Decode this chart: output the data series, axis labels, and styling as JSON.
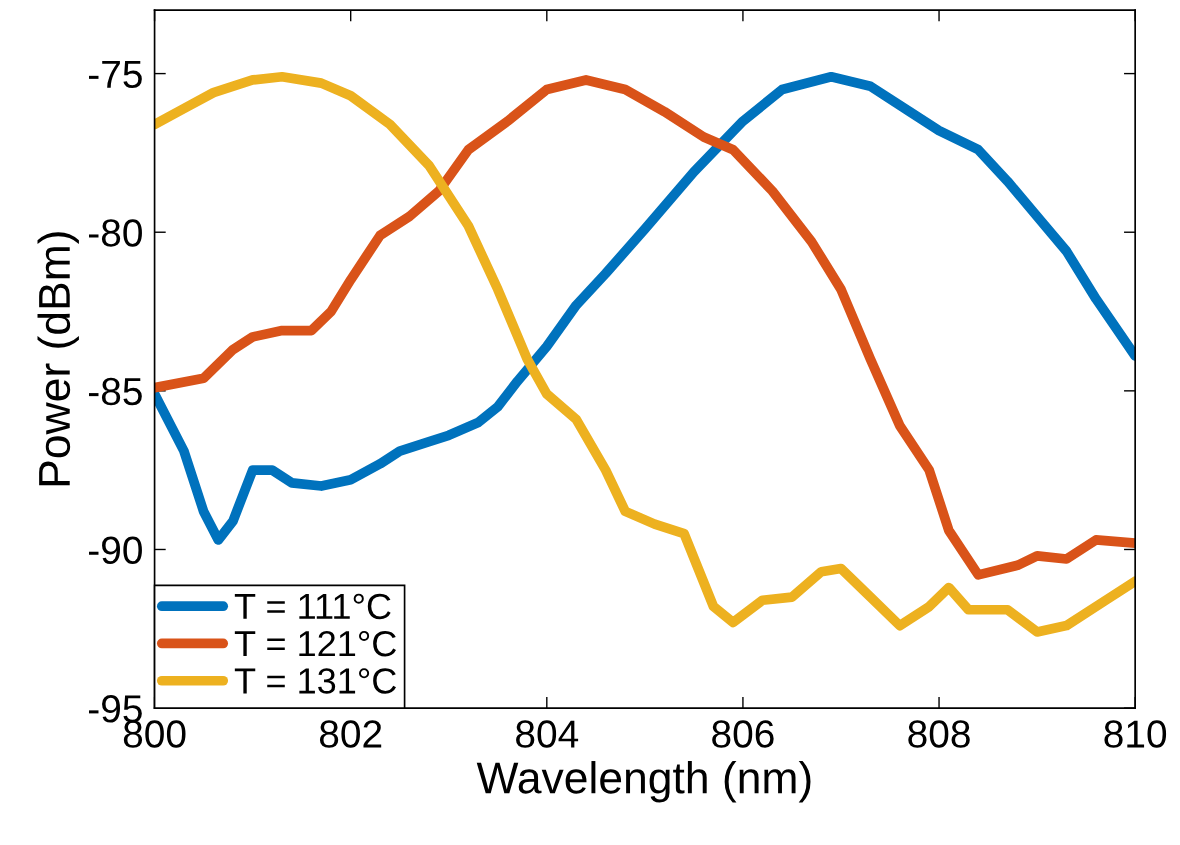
{
  "chart_data": {
    "type": "line",
    "xlabel": "Wavelength (nm)",
    "ylabel": "Power (dBm)",
    "xlim": [
      800,
      810
    ],
    "ylim": [
      -95,
      -73
    ],
    "xticks": [
      800,
      802,
      804,
      806,
      808,
      810
    ],
    "yticks": [
      -95,
      -90,
      -85,
      -80,
      -75
    ],
    "grid": false,
    "legend": "bottom left",
    "line_style": "solid",
    "marker": "none",
    "series": [
      {
        "name": "T = 111°C",
        "color": "#0072bd",
        "x": [
          800,
          800.3,
          800.5,
          800.65,
          800.8,
          801.0,
          801.2,
          801.4,
          801.7,
          802.0,
          802.3,
          802.5,
          802.8,
          803.0,
          803.3,
          803.5,
          803.7,
          804.0,
          804.3,
          804.6,
          805.0,
          805.5,
          806.0,
          806.4,
          806.9,
          807.3,
          807.7,
          808.0,
          808.4,
          808.7,
          809.0,
          809.3,
          809.6,
          810
        ],
        "values": [
          -85.1,
          -86.9,
          -88.8,
          -89.7,
          -89.1,
          -87.5,
          -87.5,
          -87.9,
          -88.0,
          -87.8,
          -87.3,
          -86.9,
          -86.6,
          -86.4,
          -86.0,
          -85.5,
          -84.7,
          -83.6,
          -82.3,
          -81.3,
          -79.9,
          -78.1,
          -76.5,
          -75.5,
          -75.1,
          -75.4,
          -76.2,
          -76.8,
          -77.4,
          -78.4,
          -79.5,
          -80.6,
          -82.1,
          -83.9
        ]
      },
      {
        "name": "T = 121°C",
        "color": "#d95319",
        "x": [
          800,
          800.5,
          800.8,
          801.0,
          801.3,
          801.6,
          801.8,
          802.0,
          802.3,
          802.6,
          802.9,
          803.2,
          803.6,
          804.0,
          804.4,
          804.8,
          805.2,
          805.6,
          805.9,
          806.3,
          806.7,
          807.0,
          807.3,
          807.6,
          807.9,
          808.1,
          808.4,
          808.8,
          809.0,
          809.3,
          809.6,
          810
        ],
        "values": [
          -84.9,
          -84.6,
          -83.7,
          -83.3,
          -83.1,
          -83.1,
          -82.5,
          -81.5,
          -80.1,
          -79.5,
          -78.7,
          -77.4,
          -76.5,
          -75.5,
          -75.2,
          -75.5,
          -76.2,
          -77.0,
          -77.4,
          -78.7,
          -80.3,
          -81.8,
          -84.0,
          -86.1,
          -87.5,
          -89.4,
          -90.8,
          -90.5,
          -90.2,
          -90.3,
          -89.7,
          -89.8
        ]
      },
      {
        "name": "T = 131°C",
        "color": "#edb120",
        "x": [
          800,
          800.3,
          800.6,
          801.0,
          801.3,
          801.7,
          802.0,
          802.4,
          802.8,
          803.2,
          803.5,
          803.8,
          804.0,
          804.3,
          804.6,
          804.8,
          805.1,
          805.4,
          805.7,
          805.9,
          806.2,
          806.5,
          806.8,
          807.0,
          807.3,
          807.6,
          807.9,
          808.1,
          808.3,
          808.7,
          809.0,
          809.3,
          809.7,
          810
        ],
        "values": [
          -76.6,
          -76.1,
          -75.6,
          -75.2,
          -75.1,
          -75.3,
          -75.7,
          -76.6,
          -77.9,
          -79.8,
          -81.8,
          -84.0,
          -85.1,
          -85.9,
          -87.5,
          -88.8,
          -89.2,
          -89.5,
          -91.8,
          -92.3,
          -91.6,
          -91.5,
          -90.7,
          -90.6,
          -91.5,
          -92.4,
          -91.8,
          -91.2,
          -91.9,
          -91.9,
          -92.6,
          -92.4,
          -91.6,
          -91.0
        ]
      }
    ]
  }
}
